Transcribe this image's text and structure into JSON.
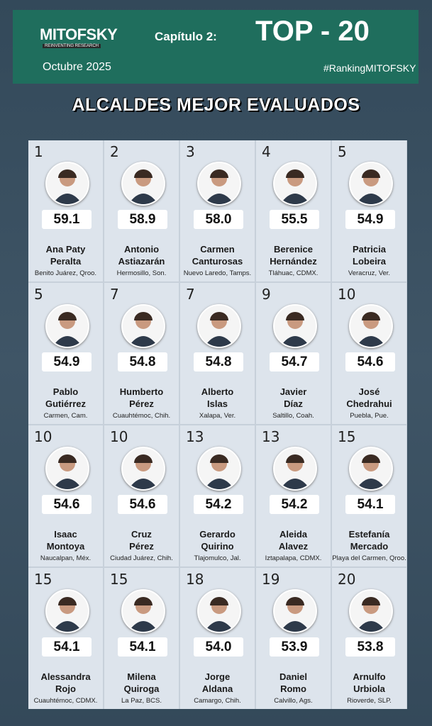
{
  "header": {
    "logo": "MITOFSKY",
    "logo_tagline": "REINVENTING RESEARCH",
    "chapter": "Capítulo 2:",
    "badge": "TOP - 20",
    "date": "Octubre  2025",
    "hashtag": "#RankingMITOFSKY"
  },
  "title": "ALCALDES MEJOR EVALUADOS",
  "cards": [
    {
      "rank": "1",
      "score": "59.1",
      "name": [
        "Ana Paty",
        "Peralta"
      ],
      "place": "Benito Juárez, Qroo."
    },
    {
      "rank": "2",
      "score": "58.9",
      "name": [
        "Antonio",
        "Astiazarán"
      ],
      "place": "Hermosillo, Son."
    },
    {
      "rank": "3",
      "score": "58.0",
      "name": [
        "Carmen",
        "Canturosas"
      ],
      "place": "Nuevo Laredo, Tamps."
    },
    {
      "rank": "4",
      "score": "55.5",
      "name": [
        "Berenice",
        "Hernández"
      ],
      "place": "Tláhuac, CDMX."
    },
    {
      "rank": "5",
      "score": "54.9",
      "name": [
        "Patricia",
        "Lobeira"
      ],
      "place": "Veracruz, Ver."
    },
    {
      "rank": "5",
      "score": "54.9",
      "name": [
        "Pablo",
        "Gutiérrez"
      ],
      "place": "Carmen, Cam."
    },
    {
      "rank": "7",
      "score": "54.8",
      "name": [
        "Humberto",
        "Pérez"
      ],
      "place": "Cuauhtémoc, Chih."
    },
    {
      "rank": "7",
      "score": "54.8",
      "name": [
        "Alberto",
        "Islas"
      ],
      "place": "Xalapa, Ver."
    },
    {
      "rank": "9",
      "score": "54.7",
      "name": [
        "Javier",
        "Díaz"
      ],
      "place": "Saltillo, Coah."
    },
    {
      "rank": "10",
      "score": "54.6",
      "name": [
        "José",
        "Chedrahui"
      ],
      "place": "Puebla, Pue."
    },
    {
      "rank": "10",
      "score": "54.6",
      "name": [
        "Isaac",
        "Montoya"
      ],
      "place": "Naucalpan, Méx."
    },
    {
      "rank": "10",
      "score": "54.6",
      "name": [
        "Cruz",
        "Pérez"
      ],
      "place": "Ciudad Juárez, Chih."
    },
    {
      "rank": "13",
      "score": "54.2",
      "name": [
        "Gerardo",
        "Quirino"
      ],
      "place": "Tlajomulco, Jal."
    },
    {
      "rank": "13",
      "score": "54.2",
      "name": [
        "Aleida",
        "Alavez"
      ],
      "place": "Iztapalapa, CDMX."
    },
    {
      "rank": "15",
      "score": "54.1",
      "name": [
        "Estefanía",
        "Mercado"
      ],
      "place": "Playa del Carmen, Qroo."
    },
    {
      "rank": "15",
      "score": "54.1",
      "name": [
        "Alessandra",
        "Rojo"
      ],
      "place": "Cuauhtémoc, CDMX."
    },
    {
      "rank": "15",
      "score": "54.1",
      "name": [
        "Milena",
        "Quiroga"
      ],
      "place": "La Paz, BCS."
    },
    {
      "rank": "18",
      "score": "54.0",
      "name": [
        "Jorge",
        "Aldana"
      ],
      "place": "Camargo, Chih."
    },
    {
      "rank": "19",
      "score": "53.9",
      "name": [
        "Daniel",
        "Romo"
      ],
      "place": "Calvillo, Ags."
    },
    {
      "rank": "20",
      "score": "53.8",
      "name": [
        "Arnulfo",
        "Urbiola"
      ],
      "place": "Rioverde, SLP."
    }
  ]
}
